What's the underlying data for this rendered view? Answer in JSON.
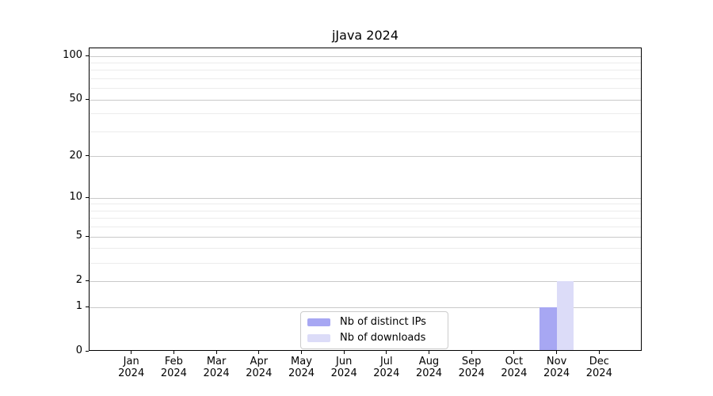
{
  "chart_data": {
    "type": "bar",
    "title": "jJava 2024",
    "categories": [
      "Jan",
      "Feb",
      "Mar",
      "Apr",
      "May",
      "Jun",
      "Jul",
      "Aug",
      "Sep",
      "Oct",
      "Nov",
      "Dec"
    ],
    "x_year_label": "2024",
    "series": [
      {
        "name": "Nb of distinct IPs",
        "color": "#a7a7f3",
        "values": [
          0,
          0,
          0,
          0,
          0,
          0,
          0,
          0,
          0,
          0,
          1,
          0
        ]
      },
      {
        "name": "Nb of downloads",
        "color": "#dcdcf8",
        "values": [
          0,
          0,
          0,
          0,
          0,
          0,
          0,
          0,
          0,
          0,
          2,
          0
        ]
      }
    ],
    "yscale": "log1p",
    "yticks": [
      0,
      1,
      2,
      5,
      10,
      20,
      50,
      100
    ],
    "yticks_minor": [
      3,
      4,
      6,
      7,
      8,
      9,
      30,
      40,
      60,
      70,
      80,
      90
    ],
    "ylim": [
      0,
      113
    ],
    "xlabel": "",
    "ylabel": "",
    "grid": "horizontal",
    "legend_position": "bottom-center-inside",
    "colors": {
      "grid_major": "#c9c9c9",
      "grid_minor": "#ececec",
      "axis": "#000000",
      "text": "#000000",
      "background": "#ffffff"
    }
  }
}
